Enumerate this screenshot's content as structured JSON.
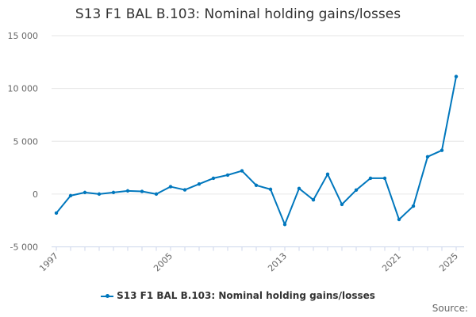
{
  "chart_data": {
    "type": "line",
    "title": "S13 F1 BAL B.103: Nominal holding gains/losses",
    "xlabel": "",
    "ylabel": "",
    "ylim": [
      -5000,
      15000
    ],
    "yticks": [
      "15 000",
      "10 000",
      "5 000",
      "0",
      "-5 000"
    ],
    "ytick_values": [
      15000,
      10000,
      5000,
      0,
      -5000
    ],
    "xticks": [
      "1997",
      "2005",
      "2013",
      "2021",
      "2025"
    ],
    "grid": true,
    "legend_position": "bottom",
    "x": [
      1997,
      1998,
      1999,
      2000,
      2001,
      2002,
      2003,
      2004,
      2005,
      2006,
      2007,
      2008,
      2009,
      2010,
      2011,
      2012,
      2013,
      2014,
      2015,
      2016,
      2017,
      2018,
      2019,
      2020,
      2021,
      2022,
      2023,
      2024,
      2025
    ],
    "series": [
      {
        "name": "S13 F1 BAL B.103: Nominal holding gains/losses",
        "color": "#0077bd",
        "values": [
          -1800,
          -150,
          150,
          0,
          150,
          300,
          250,
          0,
          700,
          400,
          950,
          1500,
          1800,
          2200,
          830,
          450,
          -2880,
          530,
          -550,
          1880,
          -980,
          380,
          1500,
          1500,
          -2410,
          -1140,
          3530,
          4140,
          11130
        ]
      }
    ]
  },
  "source_label": "Source:"
}
